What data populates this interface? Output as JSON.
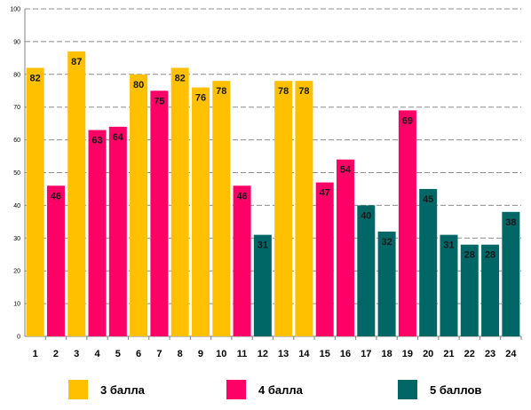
{
  "chart_data": {
    "type": "bar",
    "title": "",
    "xlabel": "",
    "ylabel": "",
    "ylim": [
      0,
      100
    ],
    "yticks": [
      0,
      10,
      20,
      30,
      40,
      50,
      60,
      70,
      80,
      90,
      100
    ],
    "grid": true,
    "legend_position": "bottom",
    "categories": [
      "1",
      "2",
      "3",
      "4",
      "5",
      "6",
      "7",
      "8",
      "9",
      "10",
      "11",
      "12",
      "13",
      "14",
      "15",
      "16",
      "17",
      "18",
      "19",
      "20",
      "21",
      "22",
      "23",
      "24"
    ],
    "values": [
      82,
      46,
      87,
      63,
      64,
      80,
      75,
      82,
      76,
      78,
      46,
      31,
      78,
      78,
      47,
      54,
      40,
      32,
      69,
      45,
      31,
      28,
      28,
      38
    ],
    "groups": [
      "3 балла",
      "4 балла",
      "3 балла",
      "4 балла",
      "4 балла",
      "3 балла",
      "4 балла",
      "3 балла",
      "3 балла",
      "3 балла",
      "4 балла",
      "5 баллов",
      "3 балла",
      "3 балла",
      "4 балла",
      "4 балла",
      "5 баллов",
      "5 баллов",
      "4 балла",
      "5 баллов",
      "5 баллов",
      "5 баллов",
      "5 баллов",
      "5 баллов"
    ],
    "legend": [
      {
        "name": "3 балла",
        "color": "#FFC000"
      },
      {
        "name": "4 балла",
        "color": "#FF0066"
      },
      {
        "name": "5 баллов",
        "color": "#006666"
      }
    ]
  }
}
